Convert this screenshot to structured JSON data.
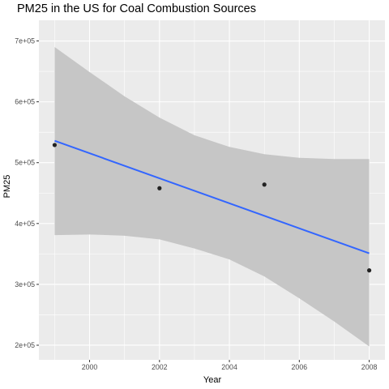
{
  "chart_data": {
    "type": "scatter",
    "title": "PM25 in the US for Coal Combustion Sources",
    "xlabel": "Year",
    "ylabel": "PM25",
    "xlim": [
      1998.55,
      2008.45
    ],
    "ylim": [
      176000,
      734000
    ],
    "x_ticks": [
      2000,
      2002,
      2004,
      2006,
      2008
    ],
    "x_tick_labels": [
      "2000",
      "2002",
      "2004",
      "2006",
      "2008"
    ],
    "y_ticks": [
      200000,
      300000,
      400000,
      500000,
      600000,
      700000
    ],
    "y_tick_labels": [
      "2e+05",
      "3e+05",
      "4e+05",
      "5e+05",
      "6e+05",
      "7e+05"
    ],
    "grid": true,
    "legend": "none",
    "points": [
      {
        "x": 1999,
        "y": 529000
      },
      {
        "x": 2002,
        "y": 458000
      },
      {
        "x": 2005,
        "y": 464000
      },
      {
        "x": 2008,
        "y": 323000
      }
    ],
    "trend": {
      "method": "linear",
      "x": [
        1999,
        2008
      ],
      "y": [
        536000,
        351000
      ]
    },
    "confidence_band": {
      "x": [
        1999,
        2000,
        2001,
        2002,
        2003,
        2004,
        2005,
        2006,
        2007,
        2008
      ],
      "upper": [
        690000,
        649000,
        609000,
        574000,
        545000,
        526000,
        514000,
        508000,
        506000,
        506000
      ],
      "lower": [
        381000,
        382000,
        380000,
        374000,
        359000,
        341000,
        313000,
        277000,
        239000,
        198000
      ]
    },
    "colors": {
      "panel": "#ebebeb",
      "grid_major": "#ffffff",
      "band": "#c6c6c6",
      "line": "#3366ff",
      "point": "#222222",
      "tick_label": "#4d4d4d"
    }
  }
}
